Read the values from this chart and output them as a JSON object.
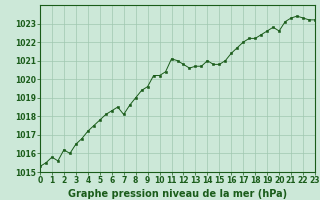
{
  "title": "Graphe pression niveau de la mer (hPa)",
  "x_values": [
    0,
    0.5,
    1,
    1.5,
    2,
    2.5,
    3,
    3.5,
    4,
    4.5,
    5,
    5.5,
    6,
    6.5,
    7,
    7.5,
    8,
    8.5,
    9,
    9.5,
    10,
    10.5,
    11,
    11.5,
    12,
    12.5,
    13,
    13.5,
    14,
    14.5,
    15,
    15.5,
    16,
    16.5,
    17,
    17.5,
    18,
    18.5,
    19,
    19.5,
    20,
    20.5,
    21,
    21.5,
    22,
    22.5,
    23
  ],
  "y_values": [
    1015.3,
    1015.5,
    1015.8,
    1015.6,
    1016.2,
    1016.0,
    1016.5,
    1016.8,
    1017.2,
    1017.5,
    1017.8,
    1018.1,
    1018.3,
    1018.5,
    1018.1,
    1018.6,
    1019.0,
    1019.4,
    1019.6,
    1020.2,
    1020.2,
    1020.4,
    1021.1,
    1021.0,
    1020.8,
    1020.6,
    1020.7,
    1020.7,
    1021.0,
    1020.8,
    1020.8,
    1021.0,
    1021.4,
    1021.7,
    1022.0,
    1022.2,
    1022.2,
    1022.4,
    1022.6,
    1022.8,
    1022.6,
    1023.1,
    1023.3,
    1023.4,
    1023.3,
    1023.2,
    1023.2
  ],
  "xlim": [
    0,
    23
  ],
  "ylim": [
    1015,
    1024
  ],
  "yticks": [
    1015,
    1016,
    1017,
    1018,
    1019,
    1020,
    1021,
    1022,
    1023
  ],
  "xticks": [
    0,
    1,
    2,
    3,
    4,
    5,
    6,
    7,
    8,
    9,
    10,
    11,
    12,
    13,
    14,
    15,
    16,
    17,
    18,
    19,
    20,
    21,
    22,
    23
  ],
  "line_color": "#1a5c1a",
  "marker_color": "#1a5c1a",
  "bg_color": "#cce8d8",
  "grid_color": "#a0c8b0",
  "title_color": "#1a5c1a",
  "title_fontsize": 7.0,
  "tick_fontsize": 5.5,
  "title_fontweight": "bold"
}
